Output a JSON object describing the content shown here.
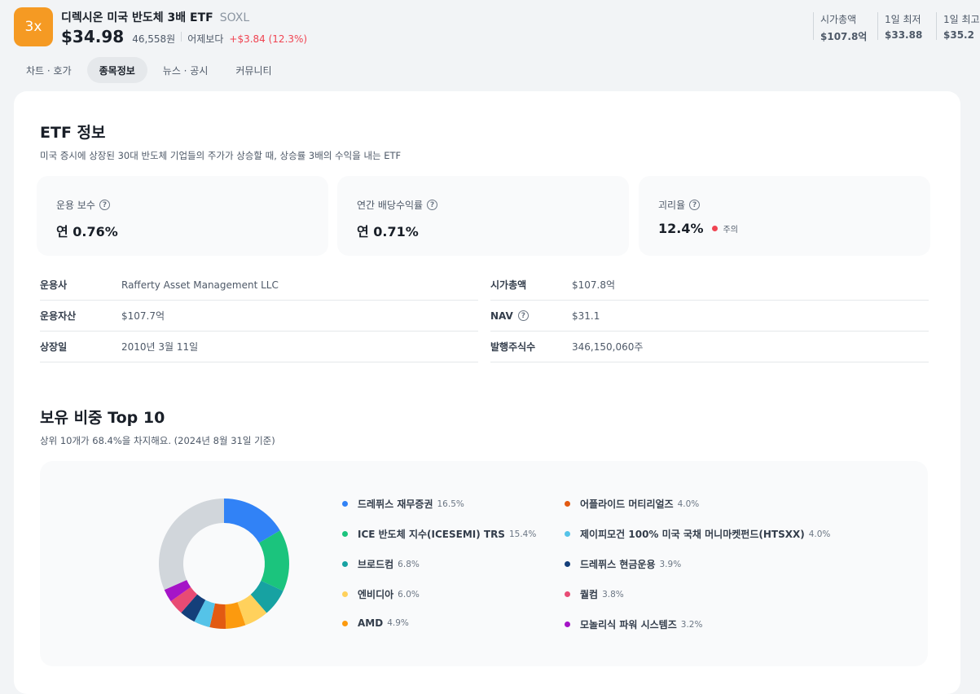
{
  "header": {
    "logo_text": "3x",
    "name": "디렉시온 미국 반도체 3배 ETF",
    "ticker": "SOXL",
    "price": "$34.98",
    "price_krw": "46,558원",
    "vs_label": "어제보다",
    "change": "+$3.84 (12.3%)",
    "stats": [
      {
        "label": "시가총액",
        "value": "$107.8억"
      },
      {
        "label": "1일 최저",
        "value": "$33.88"
      },
      {
        "label": "1일 최고",
        "value": "$35.2"
      }
    ]
  },
  "tabs": [
    {
      "label": "차트 · 호가",
      "active": false
    },
    {
      "label": "종목정보",
      "active": true
    },
    {
      "label": "뉴스 · 공시",
      "active": false
    },
    {
      "label": "커뮤니티",
      "active": false
    }
  ],
  "etf_info": {
    "title": "ETF 정보",
    "description": "미국 증시에 상장된 30대 반도체 기업들의 주가가 상승할 때, 상승률 3배의 수익을 내는 ETF",
    "boxes": [
      {
        "label": "운용 보수",
        "value": "연 0.76%"
      },
      {
        "label": "연간 배당수익률",
        "value": "연 0.71%"
      },
      {
        "label": "괴리율",
        "value": "12.4%",
        "warning": "주의"
      }
    ],
    "rows": [
      {
        "label": "운용사",
        "value": "Rafferty Asset Management LLC"
      },
      {
        "label": "운용자산",
        "value": "$107.7억"
      },
      {
        "label": "상장일",
        "value": "2010년 3월 11일"
      },
      {
        "label": "시가총액",
        "value": "$107.8억"
      },
      {
        "label": "NAV",
        "value": "$31.1"
      },
      {
        "label": "발행주식수",
        "value": "346,150,060주"
      }
    ]
  },
  "holdings": {
    "title": "보유 비중 Top 10",
    "description": "상위 10개가 68.4%을 차지해요. (2024년 8월 31일 기준)"
  },
  "chart_data": {
    "type": "pie",
    "categories": [
      "드레퓌스 재무증권",
      "ICE 반도체 지수(ICESEMI) TRS",
      "브로드컴",
      "엔비디아",
      "AMD",
      "어플라이드 머티리얼즈",
      "제이피모건 100% 미국 국채 머니마켓펀드(HTSXX)",
      "드레퓌스 현금운용",
      "퀄컴",
      "모놀리식 파워 시스템즈"
    ],
    "values": [
      16.5,
      15.4,
      6.8,
      6.0,
      4.9,
      4.0,
      4.0,
      3.9,
      3.8,
      3.2
    ],
    "labels": [
      "16.5%",
      "15.4%",
      "6.8%",
      "6.0%",
      "4.9%",
      "4.0%",
      "4.0%",
      "3.9%",
      "3.8%",
      "3.2%"
    ],
    "remainder": 31.6,
    "colors": [
      "#3182f6",
      "#1bc47d",
      "#17a2a2",
      "#ffd15c",
      "#fc9a0e",
      "#e25a12",
      "#55c3e8",
      "#143f7a",
      "#e84b74",
      "#a514c7"
    ],
    "remainder_color": "#d1d6db"
  }
}
